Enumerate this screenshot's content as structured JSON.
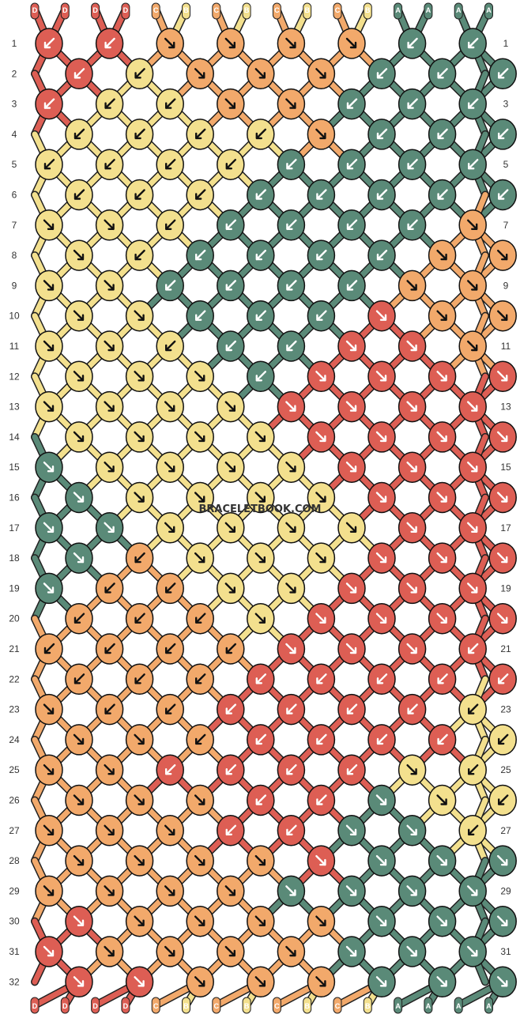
{
  "site": {
    "watermark": "BRACELETBOOK.COM"
  },
  "colors": {
    "D": "#dd5e54",
    "C": "#f2a96b",
    "B": "#f3e08e",
    "A": "#5a8a78"
  },
  "strands": {
    "top_labels": [
      "D",
      "D",
      "D",
      "D",
      "C",
      "B",
      "C",
      "B",
      "C",
      "B",
      "C",
      "B",
      "A",
      "A",
      "A",
      "A"
    ],
    "bottom_labels": [
      "D",
      "D",
      "D",
      "D",
      "C",
      "B",
      "C",
      "B",
      "C",
      "B",
      "C",
      "B",
      "A",
      "A",
      "A",
      "A"
    ]
  },
  "pattern": {
    "row_count": 32,
    "row_numbers": [
      "1",
      "2",
      "3",
      "4",
      "5",
      "6",
      "7",
      "8",
      "9",
      "10",
      "11",
      "12",
      "13",
      "14",
      "15",
      "16",
      "17",
      "18",
      "19",
      "20",
      "21",
      "22",
      "23",
      "24",
      "25",
      "26",
      "27",
      "28",
      "29",
      "30",
      "31",
      "32"
    ],
    "knot_rows": [
      "DD|DD|CR|CR|CR|CR|AD|AD",
      "DD|BD|CR|CR|CR|AD|AD|AD",
      "DD|BD|BD|CR|CR|AD|AD|AD",
      "BD|BD|BD|BD|CR|AD|AD|AD",
      "BD|BD|BD|BD|AD|AD|AD|AD",
      "BD|BD|BD|AD|AD|AD|AD|AD",
      "BR|BR|BD|AD|AD|AD|AD|CR",
      "BR|BD|AD|AD|AD|AD|CR|CR",
      "BR|BR|AD|AD|AD|AD|CR|CR",
      "BR|BR|AD|AD|AD|DR|CR|CR",
      "BR|BR|BD|AD|AD|DR|DR|CR",
      "BR|BR|BR|AD|DR|DR|DR|DR",
      "BR|BR|BR|BR|DR|DR|DR|DR",
      "BR|BR|BR|BR|DR|DR|DR|DR",
      "AR|BR|BR|BR|BR|DR|DR|DR",
      "AR|BR|BR|BR|BR|DR|DR|DR",
      "AR|AR|BR|BR|BR|BR|DR|DR",
      "AR|CD|BR|BR|BR|DR|DR|DR",
      "AR|CD|CD|BR|BR|DR|DR|DR",
      "CD|CD|CD|BR|DR|DR|DR|DR",
      "CD|CD|CD|CD|DR|DR|DR|DL",
      "CD|CD|CD|DD|DD|DD|DD|DL",
      "CR|CD|CD|DD|DD|DD|DD|BL",
      "CR|CR|CD|DD|DD|DD|DD|BL",
      "CR|CR|DD|DD|DD|DD|BR|BL",
      "CR|CR|CR|DD|DD|AR|BR|BL",
      "CR|CR|CR|DD|DD|AR|AR|BL",
      "CR|CR|CR|CR|DR|AR|AR|AR",
      "CR|CR|CR|CR|AR|AR|AR|AR",
      "DR|CR|CR|CR|CR|AR|AR|AR",
      "DR|CR|CR|CR|CR|AR|AR|AR",
      "DR|DR|CR|CR|CR|AR|AR|AR"
    ]
  }
}
